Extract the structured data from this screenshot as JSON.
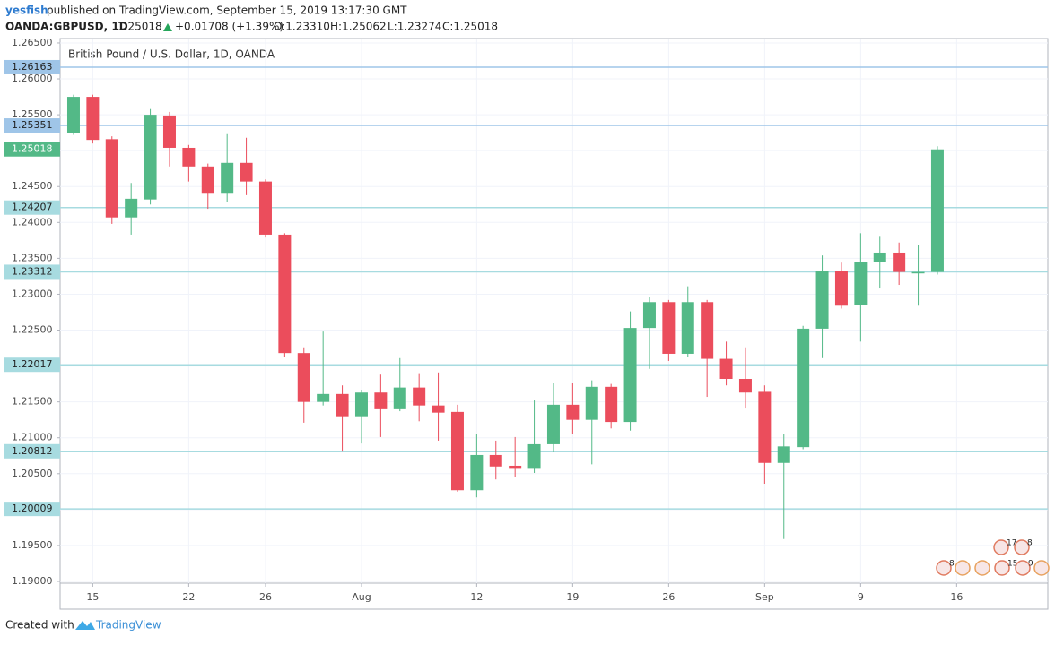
{
  "header": {
    "author": "yesfish",
    "published": "published on TradingView.com, September 15, 2019 13:17:30 GMT",
    "symbol": "OANDA:GBPUSD, 1D",
    "last": "1.25018",
    "change": "+0.01708 (+1.39%)",
    "open": "O:1.23310",
    "high": "H:1.25062",
    "low": "L:1.23274",
    "close": "C:1.25018"
  },
  "footer": {
    "created": "Created with",
    "brand": "TradingView"
  },
  "chart_data": {
    "type": "candlestick",
    "title": "British Pound / U.S. Dollar, 1D, OANDA",
    "up_color": "#53b987",
    "down_color": "#eb4d5c",
    "open": [
      1.2525,
      1.2575,
      1.2516,
      1.2407,
      1.2432,
      1.2549,
      1.2504,
      1.2478,
      1.244,
      1.2483,
      1.2457,
      1.2383,
      1.2218,
      1.215,
      1.2161,
      1.213,
      1.2163,
      1.2141,
      1.217,
      1.2145,
      1.2136,
      1.2027,
      1.2076,
      1.2061,
      1.2058,
      1.2091,
      1.2146,
      1.2125,
      1.2171,
      1.2122,
      1.2253,
      1.2289,
      1.2217,
      1.2289,
      1.221,
      1.2182,
      1.2164,
      1.2065,
      1.2087,
      1.2252,
      1.2332,
      1.2285,
      1.2345,
      1.2358,
      1.2329,
      1.2331
    ],
    "high": [
      1.2578,
      1.2578,
      1.252,
      1.2455,
      1.2558,
      1.2554,
      1.2508,
      1.2482,
      1.2523,
      1.2518,
      1.246,
      1.2385,
      1.2226,
      1.2248,
      1.2173,
      1.2167,
      1.2188,
      1.2211,
      1.219,
      1.2191,
      1.2146,
      1.2105,
      1.2096,
      1.2101,
      1.2152,
      1.2176,
      1.2176,
      1.218,
      1.2175,
      1.2276,
      1.2296,
      1.2292,
      1.2311,
      1.2292,
      1.2234,
      1.2226,
      1.2173,
      1.2105,
      1.2256,
      1.2354,
      1.2344,
      1.2385,
      1.238,
      1.2372,
      1.2368,
      1.25062
    ],
    "low": [
      1.2522,
      1.251,
      1.2398,
      1.2383,
      1.2425,
      1.2478,
      1.2457,
      1.2419,
      1.2429,
      1.2438,
      1.2379,
      1.2213,
      1.2121,
      1.2145,
      1.2082,
      1.2092,
      1.2101,
      1.2137,
      1.2123,
      1.2096,
      1.2025,
      1.2017,
      1.2042,
      1.2046,
      1.2051,
      1.208,
      1.2105,
      1.2063,
      1.2113,
      1.211,
      1.2196,
      1.2207,
      1.2213,
      1.2157,
      1.2173,
      1.2142,
      1.2036,
      1.1959,
      1.2084,
      1.2211,
      1.228,
      1.2234,
      1.2308,
      1.2313,
      1.2284,
      1.23274
    ],
    "close": [
      1.2575,
      1.2515,
      1.2407,
      1.2433,
      1.255,
      1.2504,
      1.2478,
      1.244,
      1.2483,
      1.2457,
      1.2383,
      1.2218,
      1.215,
      1.2161,
      1.213,
      1.2163,
      1.2141,
      1.217,
      1.2145,
      1.2135,
      1.2027,
      1.2076,
      1.206,
      1.2058,
      1.2091,
      1.2146,
      1.2125,
      1.2171,
      1.2122,
      1.2253,
      1.2289,
      1.2217,
      1.2289,
      1.221,
      1.2182,
      1.2163,
      1.2065,
      1.2088,
      1.2252,
      1.2332,
      1.2284,
      1.2345,
      1.2358,
      1.2331,
      1.2331,
      1.25018
    ],
    "xlim": [
      -0.7,
      50.75
    ],
    "xticks": [
      {
        "value": 1,
        "label": "15"
      },
      {
        "value": 6,
        "label": "22"
      },
      {
        "value": 10,
        "label": "26"
      },
      {
        "value": 15,
        "label": "Aug"
      },
      {
        "value": 21,
        "label": "12"
      },
      {
        "value": 26,
        "label": "19"
      },
      {
        "value": 31,
        "label": "26"
      },
      {
        "value": 36,
        "label": "Sep"
      },
      {
        "value": 41,
        "label": "9"
      },
      {
        "value": 46,
        "label": "16"
      }
    ],
    "ylim": [
      1.18975,
      1.26562
    ],
    "yticks": [
      {
        "value": 1.265,
        "label": "1.26500"
      },
      {
        "value": 1.26,
        "label": "1.26000"
      },
      {
        "value": 1.255,
        "label": "1.25500"
      },
      {
        "value": 1.25,
        "label": "1.25000"
      },
      {
        "value": 1.245,
        "label": "1.24500"
      },
      {
        "value": 1.24,
        "label": "1.24000"
      },
      {
        "value": 1.235,
        "label": "1.23500"
      },
      {
        "value": 1.23,
        "label": "1.23000"
      },
      {
        "value": 1.225,
        "label": "1.22500"
      },
      {
        "value": 1.22,
        "label": "1.22000"
      },
      {
        "value": 1.215,
        "label": "1.21500"
      },
      {
        "value": 1.21,
        "label": "1.21000"
      },
      {
        "value": 1.205,
        "label": "1.20500"
      },
      {
        "value": 1.2,
        "label": "1.20000"
      },
      {
        "value": 1.195,
        "label": "1.19500"
      },
      {
        "value": 1.19,
        "label": "1.19000"
      }
    ],
    "grid": true,
    "price_lines": [
      {
        "value": 1.26163,
        "color": "#9fc5e8"
      },
      {
        "value": 1.25351,
        "color": "#9fc5e8"
      },
      {
        "value": 1.24207,
        "color": "#a7dbe0"
      },
      {
        "value": 1.23312,
        "color": "#a7dbe0"
      },
      {
        "value": 1.22017,
        "color": "#a7dbe0"
      },
      {
        "value": 1.20812,
        "color": "#a7dbe0"
      },
      {
        "value": 1.20009,
        "color": "#a7dbe0"
      }
    ],
    "last_price": 1.25018,
    "events": [
      "17",
      "8",
      "8",
      "15",
      "9"
    ]
  }
}
